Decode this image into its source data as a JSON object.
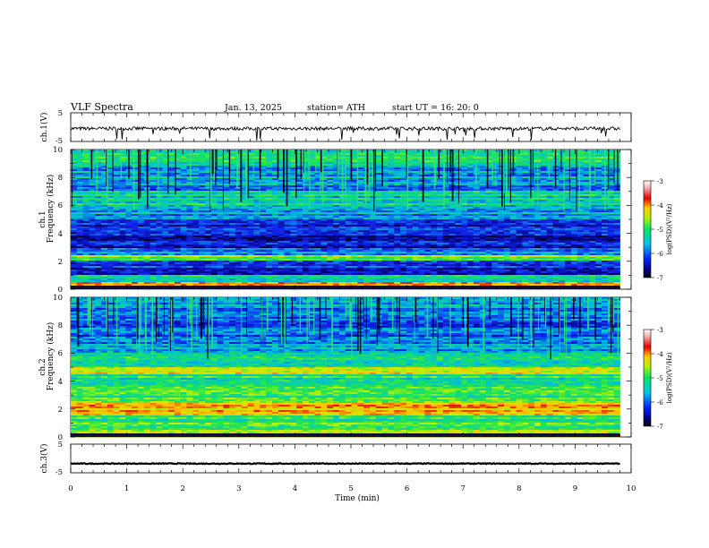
{
  "header": {
    "title": "VLF  Spectra",
    "date": "Jan. 13, 2025",
    "station": "station= ATH",
    "start": "start  UT  =   16: 20: 0"
  },
  "colors": {
    "spec_dark": "#000080",
    "spec_blue": "#1428f0",
    "spec_cyan": "#00c8dc",
    "spec_green": "#1ee650",
    "spec_yellow": "#dcf000",
    "spec_red": "#e01010"
  },
  "chart_data": [
    {
      "type": "line",
      "name": "ch1-waveform",
      "ylabel": "ch.1(V)",
      "ylim": [
        -5,
        5
      ],
      "yticks": [
        "5",
        "-5"
      ],
      "xlim": [
        0,
        10
      ],
      "approx_level": -0.5,
      "approx_noise": 0.6
    },
    {
      "type": "heatmap",
      "name": "ch1-spectrogram",
      "ylabel_line1": "ch.1",
      "ylabel_line2": "Frequency  (kHz)",
      "ylim": [
        0,
        10
      ],
      "yticks": [
        "0",
        "2",
        "4",
        "6",
        "8",
        "10"
      ],
      "xlim": [
        0,
        9.8
      ],
      "colorbar": {
        "label": "log(PSD)(V²/Hz)",
        "range": [
          -7,
          -3
        ],
        "ticks": [
          "-3",
          "-4",
          "-5",
          "-6",
          "-7"
        ]
      },
      "bands_khz_psd": [
        [
          0.0,
          0.5,
          -3.8
        ],
        [
          0.5,
          1.0,
          -5.3
        ],
        [
          1.0,
          2.0,
          -6.3
        ],
        [
          2.0,
          2.5,
          -4.8
        ],
        [
          2.5,
          3.0,
          -5.8
        ],
        [
          3.0,
          4.0,
          -6.4
        ],
        [
          4.0,
          5.0,
          -6.3
        ],
        [
          5.0,
          6.0,
          -5.7
        ],
        [
          6.0,
          7.0,
          -5.4
        ],
        [
          7.0,
          8.0,
          -5.8
        ],
        [
          8.0,
          9.0,
          -5.6
        ],
        [
          9.0,
          10.0,
          -5.2
        ]
      ]
    },
    {
      "type": "heatmap",
      "name": "ch2-spectrogram",
      "ylabel_line1": "ch.2",
      "ylabel_line2": "Frequency  (kHz)",
      "ylim": [
        0,
        10
      ],
      "yticks": [
        "0",
        "2",
        "4",
        "6",
        "8",
        "10"
      ],
      "xlim": [
        0,
        9.8
      ],
      "colorbar": {
        "label": "log(PSD)(V²/Hz)",
        "range": [
          -7,
          -3
        ],
        "ticks": [
          "-3",
          "-4",
          "-5",
          "-6",
          "-7"
        ]
      },
      "bands_khz_psd": [
        [
          0.0,
          0.5,
          -4.4
        ],
        [
          0.5,
          1.5,
          -5.0
        ],
        [
          1.5,
          2.5,
          -4.1
        ],
        [
          2.5,
          3.5,
          -5.0
        ],
        [
          3.5,
          4.5,
          -5.2
        ],
        [
          4.5,
          5.0,
          -4.4
        ],
        [
          5.0,
          6.0,
          -5.3
        ],
        [
          6.0,
          7.0,
          -5.8
        ],
        [
          7.0,
          8.0,
          -5.9
        ],
        [
          8.0,
          9.0,
          -6.0
        ],
        [
          9.0,
          10.0,
          -5.8
        ]
      ]
    },
    {
      "type": "line",
      "name": "ch3-waveform",
      "ylabel": "ch.3(V)",
      "ylim": [
        -5,
        5
      ],
      "yticks": [
        "5",
        "-5"
      ],
      "xlim": [
        0,
        10
      ],
      "approx_level": -1.8,
      "approx_noise": 0.15
    }
  ],
  "x_axis": {
    "label": "Time  (min)",
    "range": [
      0,
      10
    ],
    "ticks": [
      "0",
      "1",
      "2",
      "3",
      "4",
      "5",
      "6",
      "7",
      "8",
      "9",
      "10"
    ]
  }
}
